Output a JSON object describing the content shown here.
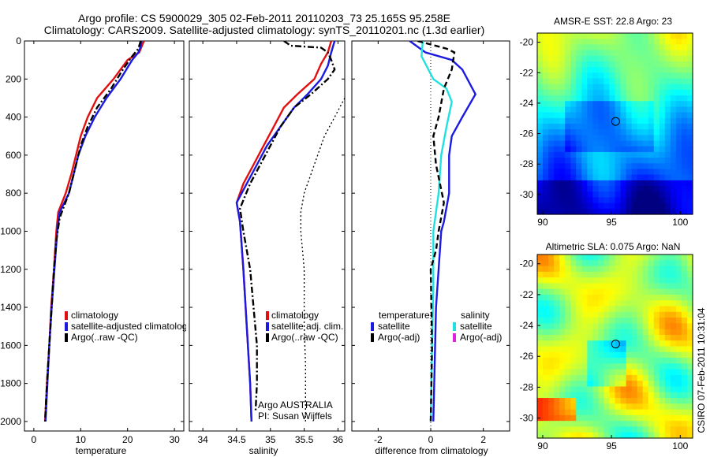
{
  "title_line1": "Argo profile: CS 5900029_305 02-Feb-2011 20110203_73 25.165S 95.258E",
  "title_line2": "Climatology: CARS2009. Satellite-adjusted climatology: synTS_20110201.nc (1.3d earlier)",
  "side_label": "CSIRO 07-Feb-2011 10:31:04",
  "colors": {
    "clim": "#e01010",
    "sat": "#1a1ae0",
    "argo": "#000000",
    "sat_sal": "#22e0e0",
    "argo_sal": "#e020e0"
  },
  "chart_data": [
    {
      "type": "line",
      "xlabel": "temperature",
      "ylabel": "",
      "xlim": [
        -2,
        32
      ],
      "ylim": [
        2050,
        0
      ],
      "xticks": [
        0,
        10,
        20,
        30
      ],
      "yticks": [
        0,
        200,
        400,
        600,
        800,
        1000,
        1200,
        1400,
        1600,
        1800,
        2000
      ],
      "legend": [
        "climatology",
        "satellite-adjusted climatology",
        "Argo(..raw -QC)"
      ],
      "series": [
        {
          "name": "climatology",
          "style": "solid",
          "color": "clim",
          "points": [
            [
              23.5,
              0
            ],
            [
              23,
              30
            ],
            [
              22.5,
              60
            ],
            [
              20,
              100
            ],
            [
              17,
              200
            ],
            [
              13.5,
              300
            ],
            [
              11.5,
              400
            ],
            [
              10,
              500
            ],
            [
              9,
              600
            ],
            [
              8,
              700
            ],
            [
              6.8,
              800
            ],
            [
              5.2,
              900
            ],
            [
              4.8,
              1000
            ],
            [
              4.3,
              1200
            ],
            [
              3.7,
              1400
            ],
            [
              3.3,
              1600
            ],
            [
              2.8,
              1800
            ],
            [
              2.4,
              2000
            ]
          ]
        },
        {
          "name": "satellite-adjusted climatology",
          "style": "solid",
          "color": "sat",
          "points": [
            [
              23,
              0
            ],
            [
              22.8,
              30
            ],
            [
              22.3,
              60
            ],
            [
              21,
              100
            ],
            [
              18.5,
              200
            ],
            [
              15.5,
              300
            ],
            [
              13,
              400
            ],
            [
              11,
              500
            ],
            [
              9.5,
              600
            ],
            [
              8.5,
              700
            ],
            [
              7.5,
              800
            ],
            [
              5.5,
              900
            ],
            [
              5,
              1000
            ],
            [
              4.4,
              1200
            ],
            [
              3.8,
              1400
            ],
            [
              3.3,
              1600
            ],
            [
              2.9,
              1800
            ],
            [
              2.5,
              2000
            ]
          ]
        },
        {
          "name": "Argo(..raw -QC)",
          "style": "dashdot",
          "color": "argo",
          "points": [
            [
              22.8,
              0
            ],
            [
              22.3,
              40
            ],
            [
              21,
              80
            ],
            [
              19,
              150
            ],
            [
              16.5,
              250
            ],
            [
              13.5,
              350
            ],
            [
              11.5,
              450
            ],
            [
              10,
              550
            ],
            [
              9,
              650
            ],
            [
              7.5,
              800
            ],
            [
              5.5,
              930
            ],
            [
              4.8,
              1050
            ],
            [
              4.3,
              1200
            ],
            [
              3.8,
              1400
            ],
            [
              3.3,
              1600
            ],
            [
              2.8,
              1800
            ],
            [
              2.4,
              2000
            ]
          ]
        }
      ]
    },
    {
      "type": "line",
      "xlabel": "salinity",
      "ylabel": "",
      "xlim": [
        33.8,
        36.1
      ],
      "ylim": [
        2050,
        0
      ],
      "xticks": [
        34,
        34.5,
        35,
        35.5,
        36
      ],
      "legend": [
        "climatology",
        "satellite adj. clim.",
        "Argo(..raw -QC)"
      ],
      "annotation": [
        "Argo AUSTRALIA",
        "PI: Susan Wijffels"
      ],
      "series": [
        {
          "name": "climatology",
          "style": "solid",
          "color": "clim",
          "points": [
            [
              35.9,
              0
            ],
            [
              35.85,
              60
            ],
            [
              35.75,
              120
            ],
            [
              35.65,
              200
            ],
            [
              35.4,
              280
            ],
            [
              35.2,
              350
            ],
            [
              35.05,
              450
            ],
            [
              34.9,
              550
            ],
            [
              34.75,
              650
            ],
            [
              34.6,
              750
            ],
            [
              34.5,
              850
            ],
            [
              34.55,
              950
            ],
            [
              34.6,
              1200
            ],
            [
              34.65,
              1500
            ],
            [
              34.7,
              1800
            ],
            [
              34.72,
              2000
            ]
          ]
        },
        {
          "name": "satellite adj. clim.",
          "style": "solid",
          "color": "sat",
          "points": [
            [
              35.95,
              0
            ],
            [
              35.9,
              60
            ],
            [
              35.85,
              130
            ],
            [
              35.75,
              200
            ],
            [
              35.55,
              280
            ],
            [
              35.35,
              350
            ],
            [
              35.15,
              450
            ],
            [
              34.95,
              550
            ],
            [
              34.8,
              650
            ],
            [
              34.65,
              750
            ],
            [
              34.5,
              850
            ],
            [
              34.55,
              950
            ],
            [
              34.6,
              1200
            ],
            [
              34.65,
              1500
            ],
            [
              34.7,
              1800
            ],
            [
              34.72,
              2000
            ]
          ]
        },
        {
          "name": "Argo(..raw -QC)",
          "style": "dashdot",
          "color": "argo",
          "points": [
            [
              35.2,
              0
            ],
            [
              35.3,
              25
            ],
            [
              35.75,
              35
            ],
            [
              35.85,
              60
            ],
            [
              35.9,
              100
            ],
            [
              35.95,
              150
            ],
            [
              35.85,
              200
            ],
            [
              35.6,
              280
            ],
            [
              35.35,
              350
            ],
            [
              35.15,
              450
            ],
            [
              35,
              550
            ],
            [
              34.85,
              650
            ],
            [
              34.7,
              750
            ],
            [
              34.55,
              880
            ],
            [
              34.6,
              1000
            ],
            [
              34.7,
              1200
            ],
            [
              34.75,
              1400
            ],
            [
              34.8,
              1600
            ],
            [
              34.8,
              1800
            ],
            [
              34.78,
              1950
            ]
          ]
        },
        {
          "name": "",
          "style": "dotted",
          "color": "argo",
          "points": [
            [
              36.1,
              300
            ],
            [
              35.95,
              400
            ],
            [
              35.8,
              500
            ],
            [
              35.7,
              600
            ],
            [
              35.6,
              700
            ],
            [
              35.5,
              800
            ],
            [
              35.45,
              900
            ],
            [
              35.45,
              1000
            ],
            [
              35.5,
              1200
            ],
            [
              35.5,
              1500
            ],
            [
              35.52,
              1700
            ],
            [
              35.52,
              2000
            ]
          ]
        }
      ]
    },
    {
      "type": "line",
      "xlabel": "difference from climatology",
      "ylabel": "",
      "xlim": [
        -3,
        3
      ],
      "ylim": [
        2050,
        0
      ],
      "xticks": [
        -2,
        0,
        2
      ],
      "legend_titles": [
        "temperature",
        "salinity"
      ],
      "legend_left": [
        "satellite",
        "Argo(-adj)"
      ],
      "legend_right": [
        "satellite",
        "Argo(-adj)"
      ],
      "series": [
        {
          "name": "satellite",
          "style": "solid",
          "color": "sat",
          "points": [
            [
              -0.8,
              0
            ],
            [
              -0.2,
              60
            ],
            [
              0.8,
              100
            ],
            [
              1.2,
              150
            ],
            [
              1.7,
              280
            ],
            [
              1.2,
              400
            ],
            [
              0.8,
              500
            ],
            [
              0.7,
              600
            ],
            [
              0.7,
              800
            ],
            [
              0.5,
              950
            ],
            [
              0.4,
              1000
            ],
            [
              0.3,
              1200
            ],
            [
              0.2,
              1400
            ],
            [
              0.15,
              1700
            ],
            [
              0.1,
              2000
            ]
          ]
        },
        {
          "name": "satellite",
          "style": "solid",
          "color": "sat_sal",
          "points": [
            [
              -0.3,
              0
            ],
            [
              -0.35,
              80
            ],
            [
              0.1,
              200
            ],
            [
              0.6,
              250
            ],
            [
              0.8,
              320
            ],
            [
              0.6,
              450
            ],
            [
              0.4,
              600
            ],
            [
              0.3,
              800
            ],
            [
              0.1,
              1000
            ],
            [
              0.1,
              1300
            ],
            [
              0.05,
              1600
            ],
            [
              0,
              2000
            ]
          ]
        },
        {
          "name": "Argo(-adj)",
          "style": "dashed",
          "color": "argo",
          "points": [
            [
              -0.5,
              0
            ],
            [
              0.6,
              40
            ],
            [
              0.9,
              60
            ],
            [
              0.8,
              150
            ],
            [
              0.5,
              250
            ],
            [
              0.3,
              400
            ],
            [
              0.1,
              500
            ],
            [
              0.2,
              650
            ],
            [
              0.5,
              850
            ],
            [
              0.3,
              1000
            ],
            [
              0.2,
              1100
            ],
            [
              0,
              1200
            ],
            [
              0.05,
              1600
            ],
            [
              0,
              2000
            ]
          ]
        }
      ]
    },
    {
      "type": "heatmap",
      "title": "AMSR-E SST: 22.8 Argo: 23",
      "xlim": [
        89.6,
        100.9
      ],
      "ylim": [
        -31.3,
        -19.4
      ],
      "xticks": [
        90,
        95,
        100
      ],
      "yticks": [
        -20,
        -22,
        -24,
        -26,
        -28,
        -30
      ],
      "marker": [
        95.3,
        -25.2
      ]
    },
    {
      "type": "heatmap",
      "title": "Altimetric SLA: 0.075 Argo: NaN",
      "xlim": [
        89.6,
        100.9
      ],
      "ylim": [
        -31.3,
        -19.4
      ],
      "xticks": [
        90,
        95,
        100
      ],
      "yticks": [
        -20,
        -22,
        -24,
        -26,
        -28,
        -30
      ],
      "marker": [
        95.3,
        -25.2
      ]
    }
  ]
}
